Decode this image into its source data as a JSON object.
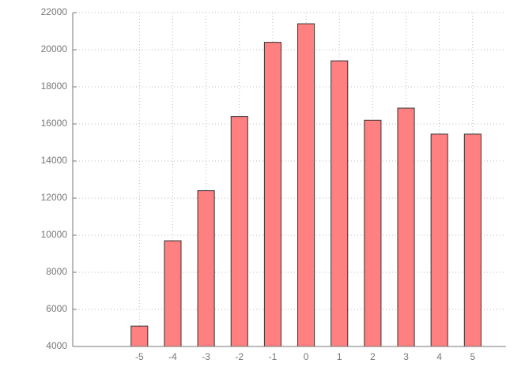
{
  "chart_data": {
    "type": "bar",
    "x": [
      -5,
      -4,
      -3,
      -2,
      -1,
      0,
      1,
      2,
      3,
      4,
      5
    ],
    "values": [
      5100,
      9700,
      12400,
      16400,
      20400,
      21400,
      19400,
      16200,
      16850,
      15450,
      15450
    ],
    "color": "#ff8080",
    "edge_color": "#333333",
    "bar_width": 0.5,
    "xlim": [
      -7,
      6
    ],
    "xticks": [
      -5,
      -4,
      -3,
      -2,
      -1,
      0,
      1,
      2,
      3,
      4,
      5
    ],
    "ylim": [
      4000,
      22000
    ],
    "yticks": [
      4000,
      6000,
      8000,
      10000,
      12000,
      14000,
      16000,
      18000,
      20000,
      22000
    ],
    "grid": true
  }
}
